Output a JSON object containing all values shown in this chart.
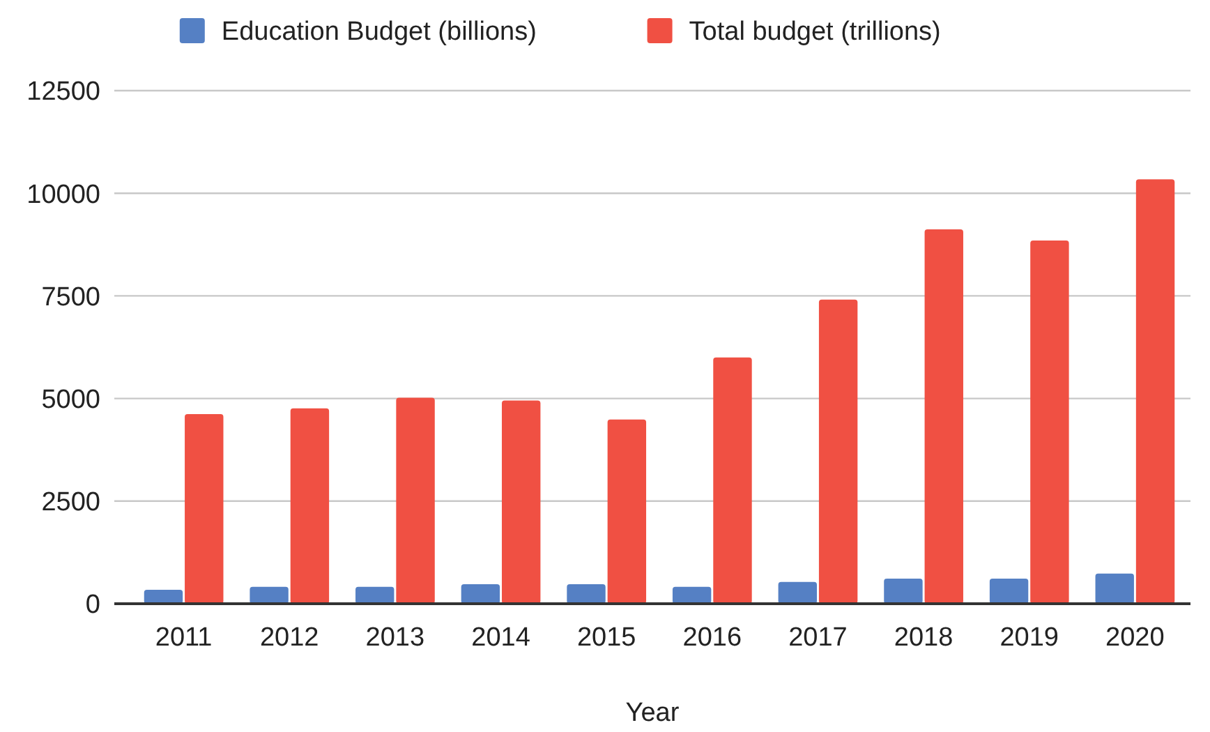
{
  "chart_data": {
    "type": "bar",
    "xlabel": "Year",
    "categories": [
      "2011",
      "2012",
      "2013",
      "2014",
      "2015",
      "2016",
      "2017",
      "2018",
      "2019",
      "2020"
    ],
    "series": [
      {
        "name": "Education Budget (billions)",
        "color": "#5580c4",
        "values": [
          340,
          410,
          410,
          475,
          475,
          410,
          530,
          610,
          610,
          735
        ]
      },
      {
        "name": "Total budget (trillions)",
        "color": "#f05043",
        "values": [
          4620,
          4760,
          5020,
          4950,
          4490,
          6000,
          7410,
          9120,
          8850,
          10340
        ]
      }
    ],
    "ylim": [
      0,
      12500
    ],
    "yticks": [
      0,
      2500,
      5000,
      7500,
      10000,
      12500
    ],
    "grid": "y",
    "legend": "top"
  }
}
